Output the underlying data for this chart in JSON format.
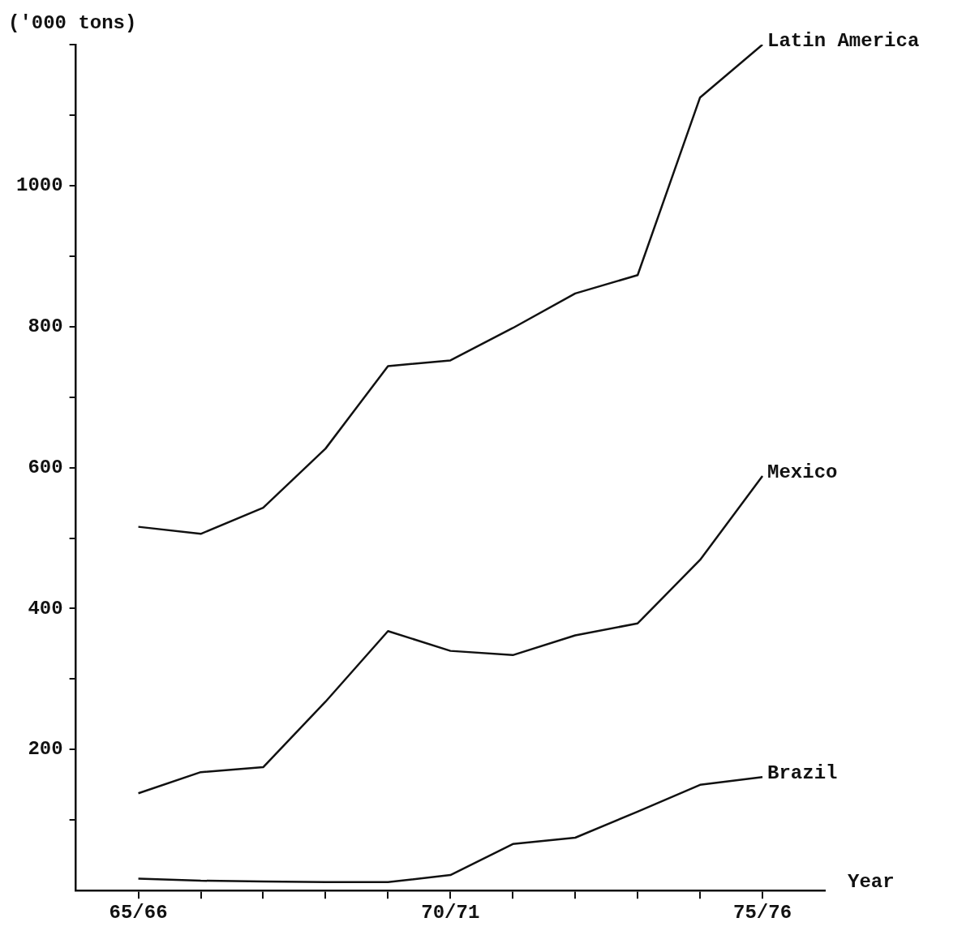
{
  "chart_data": {
    "type": "line",
    "ylabel": "('000 tons)",
    "xlabel": "Year",
    "categories": [
      "65/66",
      null,
      null,
      null,
      null,
      "70/71",
      null,
      null,
      null,
      null,
      "75/76"
    ],
    "ylim": [
      0,
      1200
    ],
    "yticks": [
      {
        "value": 100,
        "label": null
      },
      200,
      {
        "value": 300,
        "label": null
      },
      400,
      {
        "value": 500,
        "label": null
      },
      600,
      {
        "value": 700,
        "label": null
      },
      800,
      {
        "value": 900,
        "label": null
      },
      1000,
      {
        "value": 1100,
        "label": null
      },
      {
        "value": 1200,
        "label": null
      }
    ],
    "series": [
      {
        "name": "Latin America",
        "color": "#111111",
        "values": [
          516,
          506,
          543,
          627,
          744,
          752,
          798,
          847,
          873,
          1125,
          1200
        ]
      },
      {
        "name": "Mexico",
        "color": "#111111",
        "values": [
          138,
          168,
          175,
          268,
          368,
          340,
          334,
          362,
          379,
          469,
          588
        ]
      },
      {
        "name": "Brazil",
        "color": "#111111",
        "values": [
          17,
          14,
          13,
          12,
          12,
          22,
          66,
          75,
          112,
          150,
          161
        ]
      }
    ],
    "marker": "none",
    "line_style": "solid",
    "legend": false,
    "grid": false
  }
}
